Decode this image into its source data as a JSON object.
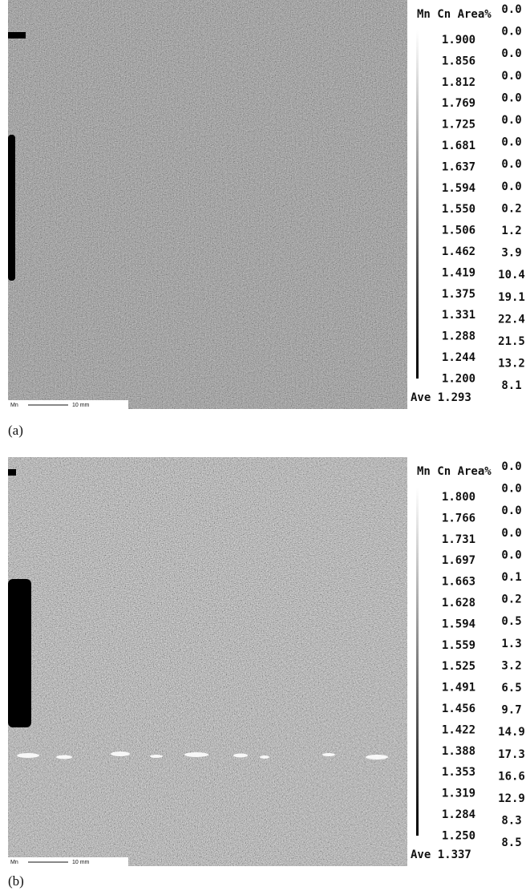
{
  "panels": [
    {
      "label": "(a)",
      "scale_bar": {
        "element": "Mn",
        "length": "10 mm"
      },
      "legend": {
        "header": "Mn Cn Area%",
        "levels": [
          "1.900",
          "1.856",
          "1.812",
          "1.769",
          "1.725",
          "1.681",
          "1.637",
          "1.594",
          "1.550",
          "1.506",
          "1.462",
          "1.419",
          "1.375",
          "1.331",
          "1.288",
          "1.244",
          "1.200"
        ],
        "area_percent": [
          "0.0",
          "0.0",
          "0.0",
          "0.0",
          "0.0",
          "0.0",
          "0.0",
          "0.0",
          "0.0",
          "0.2",
          "1.2",
          "3.9",
          "10.4",
          "19.1",
          "22.4",
          "21.5",
          "13.2",
          "8.1"
        ],
        "average": "Ave 1.293"
      }
    },
    {
      "label": "(b)",
      "scale_bar": {
        "element": "Mn",
        "length": "10 mm"
      },
      "legend": {
        "header": "Mn Cn Area%",
        "levels": [
          "1.800",
          "1.766",
          "1.731",
          "1.697",
          "1.663",
          "1.628",
          "1.594",
          "1.559",
          "1.525",
          "1.491",
          "1.456",
          "1.422",
          "1.388",
          "1.353",
          "1.319",
          "1.284",
          "1.250"
        ],
        "area_percent": [
          "0.0",
          "0.0",
          "0.0",
          "0.0",
          "0.0",
          "0.1",
          "0.2",
          "0.5",
          "1.3",
          "3.2",
          "6.5",
          "9.7",
          "14.9",
          "17.3",
          "16.6",
          "12.9",
          "8.3",
          "8.5"
        ],
        "average": "Ave 1.337"
      }
    }
  ]
}
